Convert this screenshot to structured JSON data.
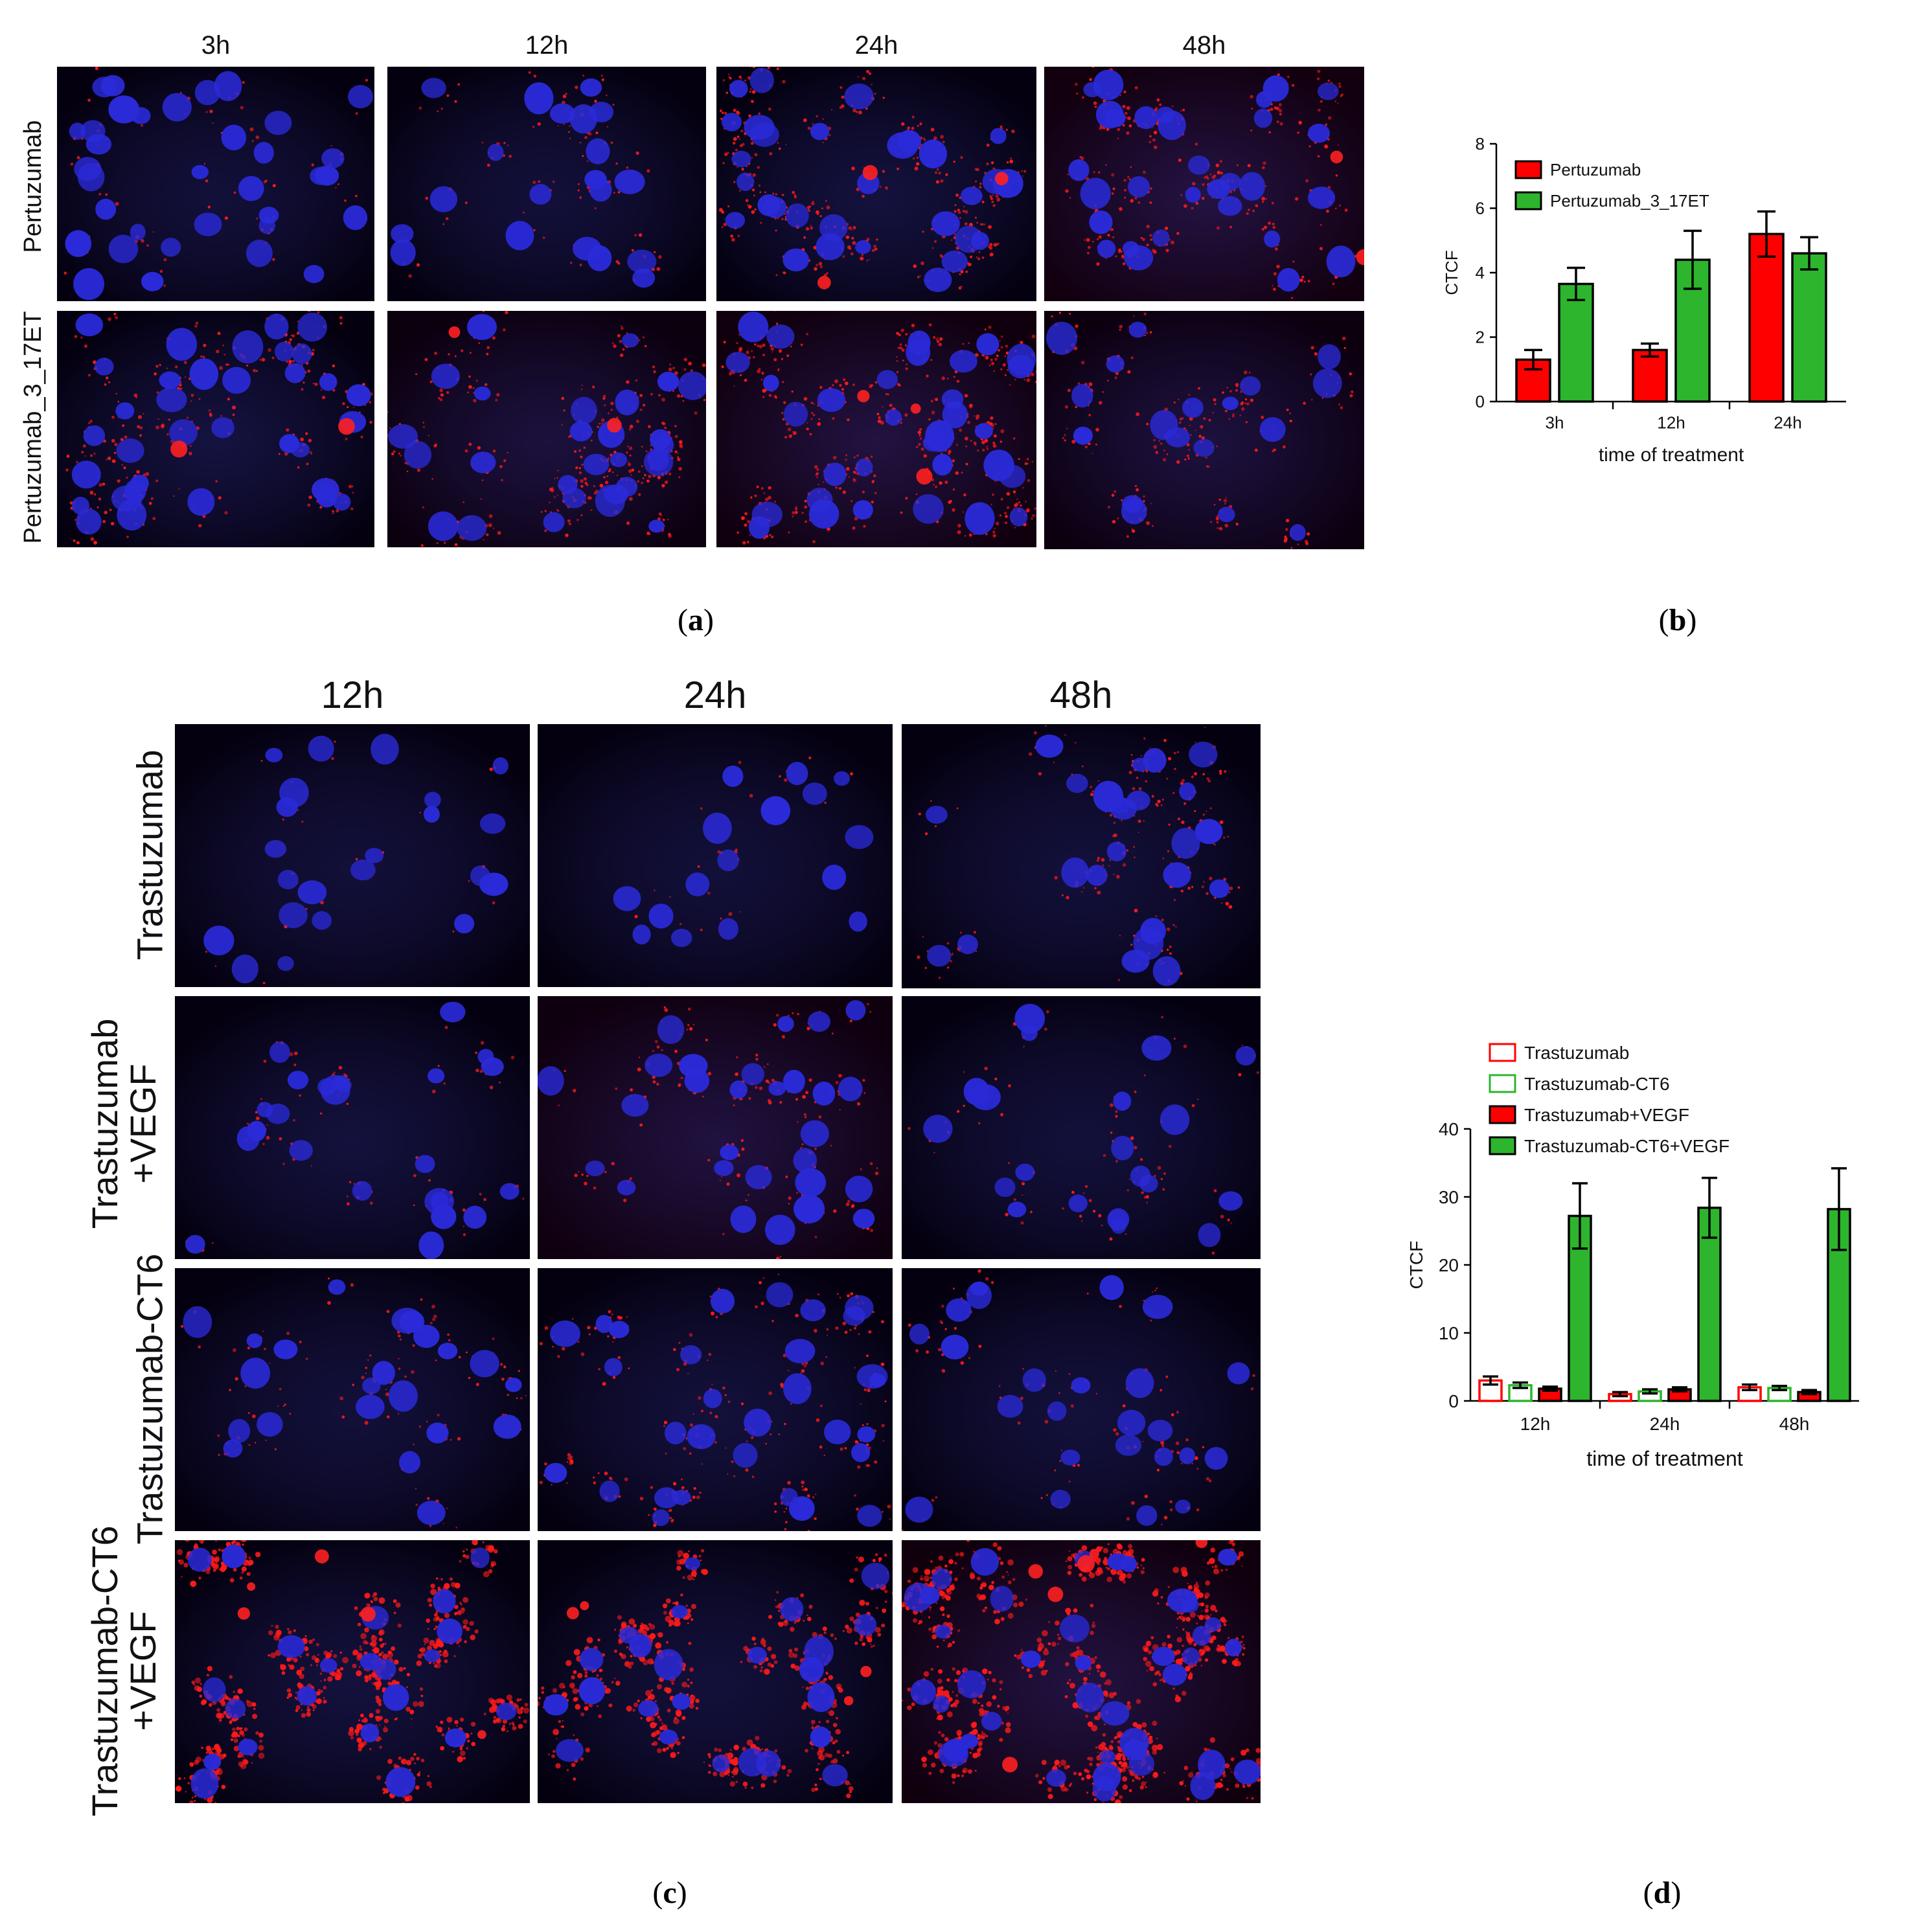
{
  "panel_a": {
    "letter": "a",
    "columns": [
      "3h",
      "12h",
      "24h",
      "48h"
    ],
    "rows": [
      "Pertuzumab",
      "Pertuzumab_3_17ET"
    ],
    "images": [
      [
        {
          "red_density": 0.08,
          "cells": 34,
          "halo": 0.05
        },
        {
          "red_density": 0.12,
          "cells": 20,
          "halo": 0.05
        },
        {
          "red_density": 0.45,
          "cells": 30,
          "halo": 0.12
        },
        {
          "red_density": 0.35,
          "cells": 30,
          "halo": 0.35
        }
      ],
      [
        {
          "red_density": 0.35,
          "cells": 34,
          "halo": 0.15
        },
        {
          "red_density": 0.4,
          "cells": 28,
          "halo": 0.18
        },
        {
          "red_density": 0.55,
          "cells": 32,
          "halo": 0.3
        },
        {
          "red_density": 0.25,
          "cells": 18,
          "halo": 0.2
        }
      ]
    ]
  },
  "panel_b": {
    "letter": "b"
  },
  "panel_c": {
    "letter": "c",
    "columns": [
      "12h",
      "24h",
      "48h"
    ],
    "rows": [
      [
        "Trastuzumab"
      ],
      [
        "Trastuzumab",
        "+VEGF"
      ],
      [
        "Trastuzumab-CT6"
      ],
      [
        "Trastuzumab-CT6",
        "+VEGF"
      ]
    ],
    "images": [
      [
        {
          "red_density": 0.03,
          "cells": 22,
          "halo": 0.04
        },
        {
          "red_density": 0.03,
          "cells": 16,
          "halo": 0.04
        },
        {
          "red_density": 0.25,
          "cells": 24,
          "halo": 0.06
        }
      ],
      [
        {
          "red_density": 0.1,
          "cells": 24,
          "halo": 0.1
        },
        {
          "red_density": 0.2,
          "cells": 28,
          "halo": 0.25
        },
        {
          "red_density": 0.1,
          "cells": 20,
          "halo": 0.06
        }
      ],
      [
        {
          "red_density": 0.15,
          "cells": 22,
          "halo": 0.05
        },
        {
          "red_density": 0.3,
          "cells": 30,
          "halo": 0.08
        },
        {
          "red_density": 0.12,
          "cells": 24,
          "halo": 0.08
        }
      ],
      [
        {
          "red_density": 0.8,
          "cells": 22,
          "halo": 0.1
        },
        {
          "red_density": 0.65,
          "cells": 24,
          "halo": 0.06
        },
        {
          "red_density": 1.0,
          "cells": 40,
          "halo": 0.3
        }
      ]
    ]
  },
  "panel_d": {
    "letter": "d"
  },
  "colors": {
    "red": "#ff0000",
    "green": "#2db52d",
    "nucleus": "#2a2ad8",
    "background": "#04000f"
  },
  "chart_data": [
    {
      "type": "bar",
      "panel": "b",
      "categories": [
        "3h",
        "12h",
        "24h"
      ],
      "series": [
        {
          "name": "Pertuzumab",
          "values": [
            1.3,
            1.6,
            5.2
          ],
          "errors": [
            0.3,
            0.2,
            0.7
          ],
          "color": "#ff0000",
          "fill": "solid"
        },
        {
          "name": "Pertuzumab_3_17ET",
          "values": [
            3.65,
            4.4,
            4.6
          ],
          "errors": [
            0.5,
            0.9,
            0.5
          ],
          "color": "#2db52d",
          "fill": "solid"
        }
      ],
      "xlabel": "time of treatment",
      "ylabel": "CTCF",
      "ylim": [
        0,
        8
      ],
      "yticks": [
        0,
        2,
        4,
        6,
        8
      ],
      "grid": false,
      "legend": "top-left"
    },
    {
      "type": "bar",
      "panel": "d",
      "categories": [
        "12h",
        "24h",
        "48h"
      ],
      "series": [
        {
          "name": "Trastuzumab",
          "values": [
            3.0,
            1.0,
            2.0
          ],
          "errors": [
            0.6,
            0.3,
            0.4
          ],
          "color": "#ff0000",
          "fill": "open"
        },
        {
          "name": "Trastuzumab-CT6",
          "values": [
            2.3,
            1.4,
            1.9
          ],
          "errors": [
            0.4,
            0.3,
            0.3
          ],
          "color": "#2db52d",
          "fill": "open"
        },
        {
          "name": "Trastuzumab+VEGF",
          "values": [
            1.8,
            1.7,
            1.3
          ],
          "errors": [
            0.3,
            0.3,
            0.3
          ],
          "color": "#ff0000",
          "fill": "solid"
        },
        {
          "name": "Trastuzumab-CT6+VEGF",
          "values": [
            27.2,
            28.4,
            28.2
          ],
          "errors": [
            4.8,
            4.4,
            6.0
          ],
          "color": "#2db52d",
          "fill": "solid"
        }
      ],
      "xlabel": "time of treatment",
      "ylabel": "CTCF",
      "ylim": [
        0,
        40
      ],
      "yticks": [
        0,
        10,
        20,
        30,
        40
      ],
      "grid": false,
      "legend": "top-left"
    }
  ]
}
